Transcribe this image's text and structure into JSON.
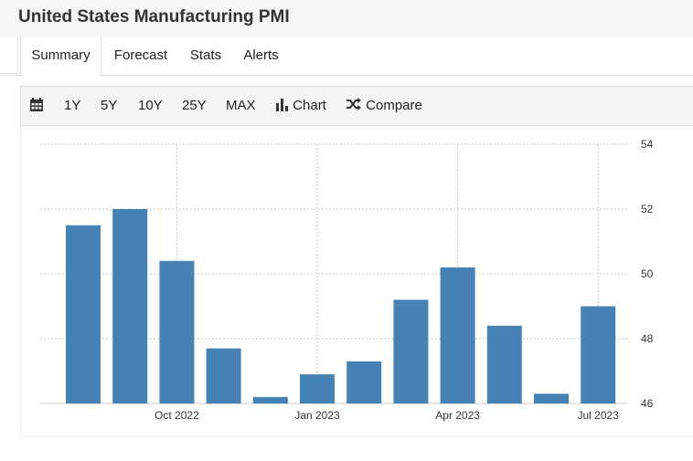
{
  "header": {
    "title": "United States Manufacturing PMI"
  },
  "tabs": [
    {
      "label": "Summary",
      "active": true
    },
    {
      "label": "Forecast",
      "active": false
    },
    {
      "label": "Stats",
      "active": false
    },
    {
      "label": "Alerts",
      "active": false
    }
  ],
  "toolbar": {
    "calendar_icon": "calendar-icon",
    "ranges": [
      "1Y",
      "5Y",
      "10Y",
      "25Y",
      "MAX"
    ],
    "chart_label": "Chart",
    "chart_icon": "bar-chart-icon",
    "compare_label": "Compare",
    "compare_icon": "shuffle-icon"
  },
  "chart_data": {
    "type": "bar",
    "categories": [
      "Aug 2022",
      "Sep 2022",
      "Oct 2022",
      "Nov 2022",
      "Dec 2022",
      "Jan 2023",
      "Feb 2023",
      "Mar 2023",
      "Apr 2023",
      "May 2023",
      "Jun 2023",
      "Jul 2023"
    ],
    "values": [
      51.5,
      52.0,
      50.4,
      47.7,
      46.2,
      46.9,
      47.3,
      49.2,
      50.2,
      48.4,
      46.3,
      49.0
    ],
    "x_tick_labels": [
      "Oct 2022",
      "Jan 2023",
      "Apr 2023",
      "Jul 2023"
    ],
    "y_ticks": [
      46,
      48,
      50,
      52,
      54
    ],
    "ylim": [
      46,
      54
    ],
    "bar_color": "#4682b4",
    "grid": true,
    "y_axis_side": "right"
  }
}
